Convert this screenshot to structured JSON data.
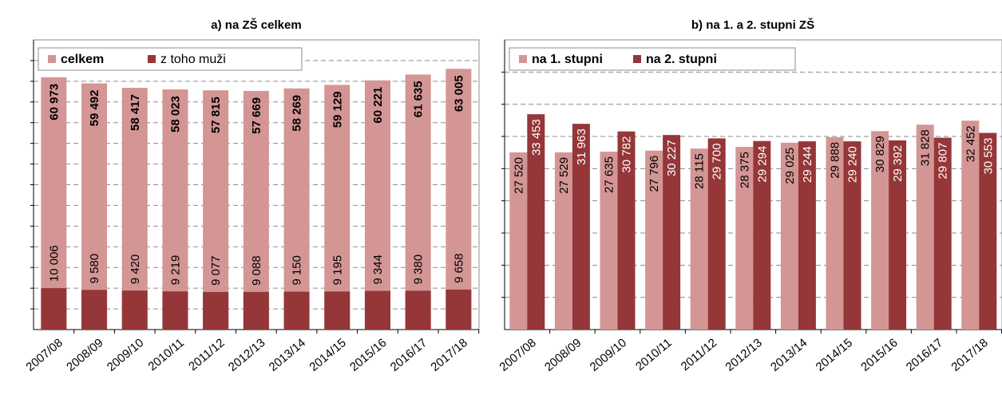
{
  "chart_data": [
    {
      "type": "bar",
      "title": "a) na ZŠ celkem",
      "categories": [
        "2007/08",
        "2008/09",
        "2009/10",
        "2010/11",
        "2011/12",
        "2012/13",
        "2013/14",
        "2014/15",
        "2015/16",
        "2016/17",
        "2017/18"
      ],
      "series": [
        {
          "name": "celkem",
          "color": "#d49595",
          "values": [
            60973,
            59492,
            58417,
            58023,
            57815,
            57669,
            58269,
            59129,
            60221,
            61635,
            63005
          ],
          "labels": [
            "60 973",
            "59 492",
            "58 417",
            "58 023",
            "57 815",
            "57 669",
            "58 269",
            "59 129",
            "60 221",
            "61 635",
            "63 005"
          ]
        },
        {
          "name": "z toho muži",
          "color": "#953638",
          "values": [
            10006,
            9580,
            9420,
            9219,
            9077,
            9088,
            9150,
            9195,
            9344,
            9380,
            9658
          ],
          "labels": [
            "10 006",
            "9 580",
            "9 420",
            "9 219",
            "9 077",
            "9 088",
            "9 150",
            "9 195",
            "9 344",
            "9 380",
            "9 658"
          ]
        }
      ],
      "overlap": true,
      "ylim": [
        0,
        70000
      ],
      "grid": true,
      "legend": "top-left"
    },
    {
      "type": "bar",
      "title": "b) na 1. a 2. stupni ZŠ",
      "categories": [
        "2007/08",
        "2008/09",
        "2009/10",
        "2010/11",
        "2011/12",
        "2012/13",
        "2013/14",
        "2014/15",
        "2015/16",
        "2016/17",
        "2017/18"
      ],
      "series": [
        {
          "name": "na 1. stupni",
          "color": "#d49595",
          "values": [
            27520,
            27529,
            27635,
            27796,
            28115,
            28375,
            29025,
            29888,
            30829,
            31828,
            32452
          ],
          "labels": [
            "27 520",
            "27 529",
            "27 635",
            "27 796",
            "28 115",
            "28 375",
            "29 025",
            "29 888",
            "30 829",
            "31 828",
            "32 452"
          ]
        },
        {
          "name": "na 2. stupni",
          "color": "#953638",
          "values": [
            33453,
            31963,
            30782,
            30227,
            29700,
            29294,
            29244,
            29240,
            29392,
            29807,
            30553
          ],
          "labels": [
            "33 453",
            "31 963",
            "30 782",
            "30 227",
            "29 700",
            "29 294",
            "29 244",
            "29 240",
            "29 392",
            "29 807",
            "30 553"
          ]
        }
      ],
      "overlap": false,
      "ylim": [
        0,
        45000
      ],
      "grid": true,
      "legend": "top-left"
    }
  ]
}
